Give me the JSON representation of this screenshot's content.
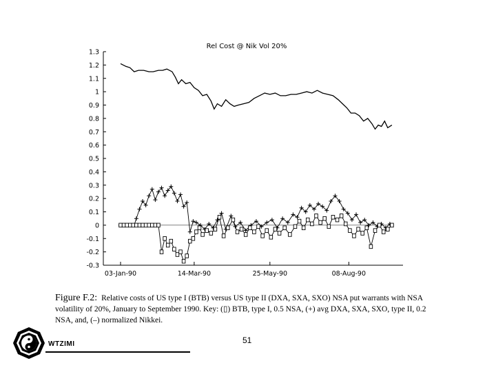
{
  "chart_data": {
    "type": "line",
    "title": "Rel Cost @ Nik Vol 20%",
    "ylim": [
      -0.3,
      1.3
    ],
    "yticks": [
      "1.3",
      "1.2",
      "1.1",
      "1",
      "0.9",
      "0.8",
      "0.7",
      "0.6",
      "0.5",
      "0.4",
      "0.3",
      "0.2",
      "0.1",
      "0",
      "-0.1",
      "-0.2",
      "-0.3"
    ],
    "xlim": [
      "1990-01-03",
      "1990-09-20"
    ],
    "xticks": [
      {
        "date": "1990-01-03",
        "label": "03-Jan-90"
      },
      {
        "date": "1990-03-14",
        "label": "14-Mar-90"
      },
      {
        "date": "1990-05-25",
        "label": "25-May-90"
      },
      {
        "date": "1990-08-08",
        "label": "08-Aug-90"
      }
    ],
    "series": [
      {
        "name": "normalized Nikkei",
        "marker": "line",
        "points": [
          [
            "1990-01-03",
            1.21
          ],
          [
            "1990-01-08",
            1.19
          ],
          [
            "1990-01-12",
            1.18
          ],
          [
            "1990-01-16",
            1.15
          ],
          [
            "1990-01-20",
            1.16
          ],
          [
            "1990-01-25",
            1.16
          ],
          [
            "1990-01-30",
            1.15
          ],
          [
            "1990-02-03",
            1.15
          ],
          [
            "1990-02-08",
            1.16
          ],
          [
            "1990-02-12",
            1.16
          ],
          [
            "1990-02-16",
            1.17
          ],
          [
            "1990-02-21",
            1.15
          ],
          [
            "1990-02-24",
            1.11
          ],
          [
            "1990-02-27",
            1.06
          ],
          [
            "1990-03-02",
            1.09
          ],
          [
            "1990-03-06",
            1.06
          ],
          [
            "1990-03-10",
            1.07
          ],
          [
            "1990-03-14",
            1.03
          ],
          [
            "1990-03-18",
            1.01
          ],
          [
            "1990-03-22",
            0.97
          ],
          [
            "1990-03-26",
            0.98
          ],
          [
            "1990-03-30",
            0.93
          ],
          [
            "1990-04-02",
            0.87
          ],
          [
            "1990-04-05",
            0.91
          ],
          [
            "1990-04-09",
            0.89
          ],
          [
            "1990-04-13",
            0.94
          ],
          [
            "1990-04-17",
            0.91
          ],
          [
            "1990-04-21",
            0.89
          ],
          [
            "1990-04-25",
            0.9
          ],
          [
            "1990-04-30",
            0.91
          ],
          [
            "1990-05-05",
            0.92
          ],
          [
            "1990-05-10",
            0.95
          ],
          [
            "1990-05-15",
            0.97
          ],
          [
            "1990-05-20",
            0.99
          ],
          [
            "1990-05-25",
            0.98
          ],
          [
            "1990-05-30",
            0.99
          ],
          [
            "1990-06-04",
            0.97
          ],
          [
            "1990-06-09",
            0.97
          ],
          [
            "1990-06-14",
            0.98
          ],
          [
            "1990-06-19",
            0.98
          ],
          [
            "1990-06-24",
            0.99
          ],
          [
            "1990-06-29",
            1.0
          ],
          [
            "1990-07-04",
            0.99
          ],
          [
            "1990-07-09",
            1.01
          ],
          [
            "1990-07-14",
            0.99
          ],
          [
            "1990-07-19",
            0.98
          ],
          [
            "1990-07-24",
            0.97
          ],
          [
            "1990-07-29",
            0.94
          ],
          [
            "1990-08-02",
            0.91
          ],
          [
            "1990-08-06",
            0.88
          ],
          [
            "1990-08-10",
            0.84
          ],
          [
            "1990-08-14",
            0.84
          ],
          [
            "1990-08-18",
            0.82
          ],
          [
            "1990-08-22",
            0.78
          ],
          [
            "1990-08-26",
            0.8
          ],
          [
            "1990-08-30",
            0.76
          ],
          [
            "1990-09-02",
            0.72
          ],
          [
            "1990-09-05",
            0.75
          ],
          [
            "1990-09-08",
            0.74
          ],
          [
            "1990-09-11",
            0.78
          ],
          [
            "1990-09-14",
            0.73
          ],
          [
            "1990-09-18",
            0.75
          ]
        ]
      },
      {
        "name": "avg DXA, SXA, SXO, type II, 0.2 NSA",
        "marker": "plus",
        "points": [
          [
            "1990-01-03",
            0.0
          ],
          [
            "1990-01-08",
            0.0
          ],
          [
            "1990-01-12",
            0.0
          ],
          [
            "1990-01-16",
            0.0
          ],
          [
            "1990-01-18",
            0.05
          ],
          [
            "1990-01-21",
            0.12
          ],
          [
            "1990-01-24",
            0.18
          ],
          [
            "1990-01-27",
            0.15
          ],
          [
            "1990-01-30",
            0.22
          ],
          [
            "1990-02-02",
            0.27
          ],
          [
            "1990-02-05",
            0.19
          ],
          [
            "1990-02-08",
            0.25
          ],
          [
            "1990-02-11",
            0.28
          ],
          [
            "1990-02-14",
            0.22
          ],
          [
            "1990-02-17",
            0.26
          ],
          [
            "1990-02-20",
            0.29
          ],
          [
            "1990-02-23",
            0.24
          ],
          [
            "1990-02-26",
            0.18
          ],
          [
            "1990-03-01",
            0.23
          ],
          [
            "1990-03-04",
            0.14
          ],
          [
            "1990-03-07",
            0.17
          ],
          [
            "1990-03-10",
            -0.05
          ],
          [
            "1990-03-13",
            0.03
          ],
          [
            "1990-03-16",
            0.02
          ],
          [
            "1990-03-20",
            0.0
          ],
          [
            "1990-03-24",
            -0.03
          ],
          [
            "1990-03-28",
            0.01
          ],
          [
            "1990-04-01",
            -0.02
          ],
          [
            "1990-04-05",
            0.04
          ],
          [
            "1990-04-09",
            0.09
          ],
          [
            "1990-04-13",
            -0.03
          ],
          [
            "1990-04-18",
            0.07
          ],
          [
            "1990-04-22",
            -0.01
          ],
          [
            "1990-04-27",
            0.02
          ],
          [
            "1990-05-02",
            -0.04
          ],
          [
            "1990-05-07",
            0.0
          ],
          [
            "1990-05-12",
            0.03
          ],
          [
            "1990-05-17",
            -0.01
          ],
          [
            "1990-05-22",
            0.02
          ],
          [
            "1990-05-27",
            0.04
          ],
          [
            "1990-06-01",
            -0.02
          ],
          [
            "1990-06-06",
            0.05
          ],
          [
            "1990-06-11",
            0.02
          ],
          [
            "1990-06-16",
            0.08
          ],
          [
            "1990-06-20",
            0.06
          ],
          [
            "1990-06-24",
            0.13
          ],
          [
            "1990-06-28",
            0.1
          ],
          [
            "1990-07-02",
            0.15
          ],
          [
            "1990-07-06",
            0.12
          ],
          [
            "1990-07-10",
            0.16
          ],
          [
            "1990-07-14",
            0.14
          ],
          [
            "1990-07-18",
            0.11
          ],
          [
            "1990-07-22",
            0.18
          ],
          [
            "1990-07-26",
            0.22
          ],
          [
            "1990-07-30",
            0.18
          ],
          [
            "1990-08-03",
            0.12
          ],
          [
            "1990-08-07",
            0.09
          ],
          [
            "1990-08-11",
            0.04
          ],
          [
            "1990-08-15",
            0.08
          ],
          [
            "1990-08-19",
            0.02
          ],
          [
            "1990-08-23",
            0.04
          ],
          [
            "1990-08-27",
            0.0
          ],
          [
            "1990-08-31",
            0.02
          ],
          [
            "1990-09-04",
            -0.01
          ],
          [
            "1990-09-08",
            0.01
          ],
          [
            "1990-09-12",
            -0.02
          ],
          [
            "1990-09-16",
            0.01
          ]
        ]
      },
      {
        "name": "BTB, type I, 0.5 NSA",
        "marker": "square",
        "points": [
          [
            "1990-01-03",
            0.0
          ],
          [
            "1990-01-06",
            0.0
          ],
          [
            "1990-01-09",
            0.0
          ],
          [
            "1990-01-12",
            0.0
          ],
          [
            "1990-01-15",
            0.0
          ],
          [
            "1990-01-18",
            0.0
          ],
          [
            "1990-01-21",
            0.0
          ],
          [
            "1990-01-24",
            0.0
          ],
          [
            "1990-01-27",
            0.0
          ],
          [
            "1990-01-30",
            0.0
          ],
          [
            "1990-02-02",
            0.0
          ],
          [
            "1990-02-05",
            0.0
          ],
          [
            "1990-02-08",
            0.0
          ],
          [
            "1990-02-11",
            -0.2
          ],
          [
            "1990-02-14",
            -0.1
          ],
          [
            "1990-02-17",
            -0.15
          ],
          [
            "1990-02-20",
            -0.12
          ],
          [
            "1990-02-23",
            -0.18
          ],
          [
            "1990-02-26",
            -0.22
          ],
          [
            "1990-03-01",
            -0.2
          ],
          [
            "1990-03-04",
            -0.27
          ],
          [
            "1990-03-07",
            -0.23
          ],
          [
            "1990-03-10",
            -0.12
          ],
          [
            "1990-03-13",
            -0.1
          ],
          [
            "1990-03-16",
            -0.05
          ],
          [
            "1990-03-19",
            -0.02
          ],
          [
            "1990-03-22",
            -0.07
          ],
          [
            "1990-03-26",
            -0.04
          ],
          [
            "1990-03-30",
            -0.06
          ],
          [
            "1990-04-03",
            -0.03
          ],
          [
            "1990-04-07",
            0.06
          ],
          [
            "1990-04-11",
            -0.08
          ],
          [
            "1990-04-15",
            -0.02
          ],
          [
            "1990-04-20",
            0.04
          ],
          [
            "1990-04-24",
            -0.05
          ],
          [
            "1990-04-28",
            -0.03
          ],
          [
            "1990-05-02",
            -0.07
          ],
          [
            "1990-05-06",
            -0.02
          ],
          [
            "1990-05-10",
            -0.05
          ],
          [
            "1990-05-14",
            -0.01
          ],
          [
            "1990-05-18",
            -0.08
          ],
          [
            "1990-05-22",
            -0.04
          ],
          [
            "1990-05-26",
            -0.09
          ],
          [
            "1990-05-30",
            -0.03
          ],
          [
            "1990-06-03",
            -0.06
          ],
          [
            "1990-06-08",
            -0.02
          ],
          [
            "1990-06-13",
            -0.07
          ],
          [
            "1990-06-18",
            -0.01
          ],
          [
            "1990-06-22",
            0.03
          ],
          [
            "1990-06-26",
            -0.02
          ],
          [
            "1990-06-30",
            0.04
          ],
          [
            "1990-07-04",
            0.01
          ],
          [
            "1990-07-08",
            0.07
          ],
          [
            "1990-07-12",
            0.02
          ],
          [
            "1990-07-16",
            0.05
          ],
          [
            "1990-07-20",
            -0.01
          ],
          [
            "1990-07-24",
            0.06
          ],
          [
            "1990-07-28",
            0.04
          ],
          [
            "1990-08-01",
            0.07
          ],
          [
            "1990-08-05",
            0.01
          ],
          [
            "1990-08-09",
            -0.04
          ],
          [
            "1990-08-13",
            -0.08
          ],
          [
            "1990-08-17",
            -0.03
          ],
          [
            "1990-08-21",
            -0.06
          ],
          [
            "1990-08-25",
            -0.02
          ],
          [
            "1990-08-29",
            -0.16
          ],
          [
            "1990-09-02",
            -0.04
          ],
          [
            "1990-09-06",
            0.0
          ],
          [
            "1990-09-10",
            -0.05
          ],
          [
            "1990-09-14",
            -0.03
          ],
          [
            "1990-09-18",
            0.0
          ]
        ]
      }
    ]
  },
  "caption": {
    "label": "Figure F.2:",
    "text": "Relative costs of US type I (BTB) versus US type II (DXA, SXA, SXO) NSA put warrants with NSA volatility of 20%, January to September 1990. Key: (▯) BTB, type I, 0.5 NSA, (+) avg DXA, SXA, SXO, type II, 0.2 NSA, and, (–) normalized Nikkei."
  },
  "footer": {
    "page_number": "51",
    "logo_text": "WTZIMI",
    "logo_icon": "bagua-yin-yang-icon"
  }
}
